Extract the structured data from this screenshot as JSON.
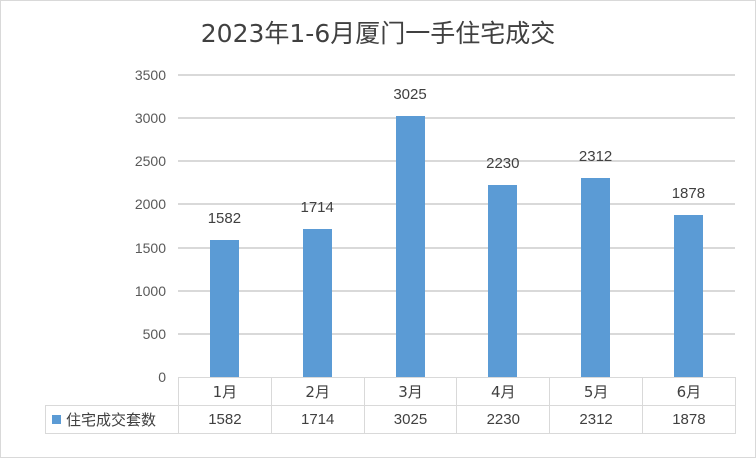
{
  "chart_data": {
    "type": "bar",
    "title": "2023年1-6月厦门一手住宅成交",
    "categories": [
      "1月",
      "2月",
      "3月",
      "4月",
      "5月",
      "6月"
    ],
    "series": [
      {
        "name": "住宅成交套数",
        "values": [
          1582,
          1714,
          3025,
          2230,
          2312,
          1878
        ],
        "color": "#5b9bd5"
      }
    ],
    "xlabel": "",
    "ylabel": "",
    "ylim": [
      0,
      3500
    ],
    "yticks": [
      0,
      500,
      1000,
      1500,
      2000,
      2500,
      3000,
      3500
    ],
    "grid": true,
    "data_labels": true,
    "legend_position": "data-table-left",
    "data_table": true
  },
  "labels": {
    "title": "2023年1-6月厦门一手住宅成交",
    "yticks": [
      "0",
      "500",
      "1000",
      "1500",
      "2000",
      "2500",
      "3000",
      "3500"
    ],
    "categories": [
      "1月",
      "2月",
      "3月",
      "4月",
      "5月",
      "6月"
    ],
    "values": [
      "1582",
      "1714",
      "3025",
      "2230",
      "2312",
      "1878"
    ],
    "series_name": "住宅成交套数"
  },
  "colors": {
    "bar": "#5b9bd5",
    "grid": "#d9d9d9",
    "text": "#404040"
  }
}
